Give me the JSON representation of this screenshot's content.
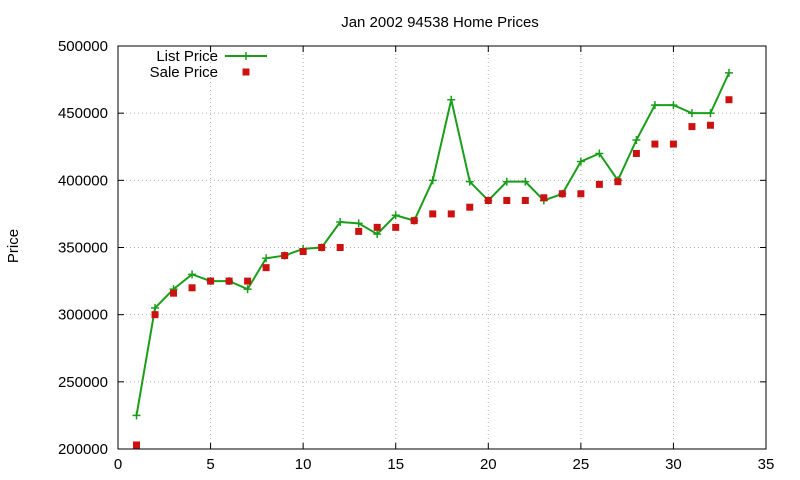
{
  "chart_data": {
    "type": "line",
    "title": "Jan 2002 94538 Home Prices",
    "xlabel": "",
    "ylabel": "Price",
    "xlim": [
      0,
      35
    ],
    "ylim": [
      200000,
      500000
    ],
    "xticks": [
      0,
      5,
      10,
      15,
      20,
      25,
      30,
      35
    ],
    "yticks": [
      200000,
      250000,
      300000,
      350000,
      400000,
      450000,
      500000
    ],
    "xtick_labels": [
      "0",
      "5",
      "10",
      "15",
      "20",
      "25",
      "30",
      "35"
    ],
    "ytick_labels": [
      "200000",
      "250000",
      "300000",
      "350000",
      "400000",
      "450000",
      "500000"
    ],
    "grid": true,
    "legend_position": "top-left",
    "x": [
      1,
      2,
      3,
      4,
      5,
      6,
      7,
      8,
      9,
      10,
      11,
      12,
      13,
      14,
      15,
      16,
      17,
      18,
      19,
      20,
      21,
      22,
      23,
      24,
      25,
      26,
      27,
      28,
      29,
      30,
      31,
      32,
      33
    ],
    "series": [
      {
        "name": "List Price",
        "style": "lines+points",
        "marker": "plus",
        "color": "#1a9e1a",
        "values": [
          225000,
          305000,
          319000,
          330000,
          325000,
          325000,
          319000,
          342000,
          344000,
          349000,
          350000,
          369000,
          368000,
          360000,
          374000,
          370000,
          400000,
          460000,
          399000,
          385000,
          399000,
          399000,
          385000,
          390000,
          414000,
          420000,
          400000,
          430000,
          456000,
          456000,
          450000,
          450000,
          480000
        ]
      },
      {
        "name": "Sale Price",
        "style": "points",
        "marker": "square",
        "color": "#cc1111",
        "values": [
          203000,
          300000,
          316000,
          320000,
          325000,
          325000,
          325000,
          335000,
          344000,
          347000,
          350000,
          350000,
          362000,
          365000,
          365000,
          370000,
          375000,
          375000,
          380000,
          385000,
          385000,
          385000,
          387000,
          390000,
          390000,
          397000,
          399000,
          420000,
          427000,
          427000,
          440000,
          441000,
          460000
        ]
      }
    ]
  }
}
